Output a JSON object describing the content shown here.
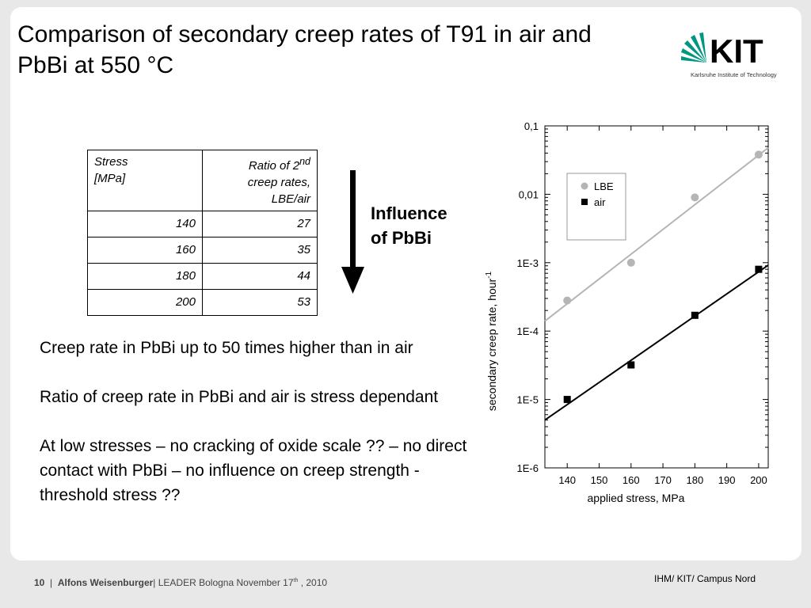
{
  "slide": {
    "title": "Comparison of secondary creep rates of T91 in air and PbBi at 550 °C",
    "logo_text": "KIT",
    "logo_subtitle": "Karlsruhe Institute of Technology"
  },
  "table": {
    "header_stress_line1": "Stress",
    "header_stress_line2": "[MPa]",
    "header_ratio_prefix": "Ratio of 2",
    "header_ratio_sup": "nd",
    "header_ratio_line2": "creep rates,",
    "header_ratio_line3": "LBE/air",
    "rows": [
      {
        "stress": "140",
        "ratio": "27"
      },
      {
        "stress": "160",
        "ratio": "35"
      },
      {
        "stress": "180",
        "ratio": "44"
      },
      {
        "stress": "200",
        "ratio": "53"
      }
    ]
  },
  "annotation": {
    "line1": "Influence",
    "line2": "of PbBi"
  },
  "bullets": [
    "Creep rate in PbBi up to 50 times higher than in air",
    "Ratio of creep rate in PbBi and air is stress dependant",
    "At low stresses – no cracking of oxide scale ?? – no direct contact with PbBi – no influence on creep strength - threshold stress ??"
  ],
  "chart_data": {
    "type": "scatter",
    "xlabel": "applied stress, MPa",
    "ylabel": "secondary creep rate, hour",
    "ylabel_sup": "-1",
    "y_scale": "log",
    "xlim": [
      133,
      203
    ],
    "ylim_exp": [
      -6,
      -1
    ],
    "x_ticks": [
      140,
      150,
      160,
      170,
      180,
      190,
      200
    ],
    "y_ticks": [
      {
        "exp": -1,
        "label": "0,1"
      },
      {
        "exp": -2,
        "label": "0,01"
      },
      {
        "exp": -3,
        "label": "1E-3"
      },
      {
        "exp": -4,
        "label": "1E-4"
      },
      {
        "exp": -5,
        "label": "1E-5"
      },
      {
        "exp": -6,
        "label": "1E-6"
      }
    ],
    "legend_position": "top-left",
    "series": [
      {
        "name": "LBE",
        "color": "#b5b5b5",
        "marker": "circle",
        "x": [
          140,
          160,
          180,
          200
        ],
        "y": [
          0.00028,
          0.001,
          0.009,
          0.038
        ],
        "fit": {
          "x": [
            133,
            203
          ],
          "y": [
            0.00014,
            0.048
          ]
        }
      },
      {
        "name": "air",
        "color": "#000000",
        "marker": "square",
        "x": [
          140,
          160,
          180,
          200
        ],
        "y": [
          1e-05,
          3.2e-05,
          0.00017,
          0.0008
        ],
        "fit": {
          "x": [
            133,
            203
          ],
          "y": [
            5e-06,
            0.00092
          ]
        }
      }
    ]
  },
  "footer": {
    "page": "10",
    "separator": "|",
    "author": "Alfons Weisenburger",
    "event": "| LEADER Bologna November 17",
    "event_sup": "th",
    "event_year": " , 2010",
    "institute": "IHM/ KIT/ Campus Nord"
  }
}
